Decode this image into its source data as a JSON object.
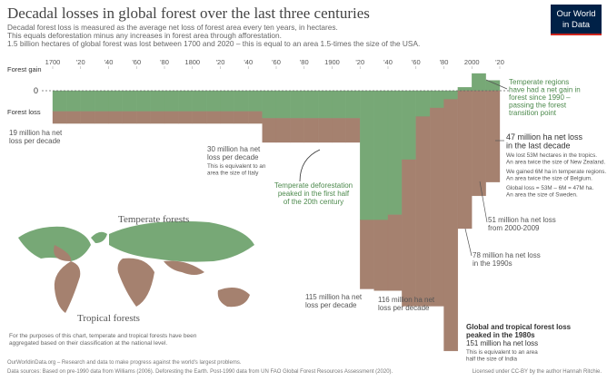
{
  "header": {
    "title": "Decadal losses in global forest over the last three centuries",
    "subtitle": [
      "Decadal forest loss is measured as the average net loss of forest area every ten years, in hectares.",
      "This equals deforestation minus any increases in forest area through afforestation.",
      "1.5 billion hectares of global forest was lost between 1700 and 2020 – this is equal to an area 1.5-times the size of the USA."
    ],
    "logo": [
      "Our World",
      "in Data"
    ]
  },
  "chart_data": {
    "type": "bar",
    "stacked": true,
    "y_labels": {
      "gain": "Forest gain",
      "loss": "Forest loss"
    },
    "x": [
      1700,
      1710,
      1720,
      1730,
      1740,
      1750,
      1760,
      1770,
      1780,
      1790,
      1800,
      1810,
      1820,
      1830,
      1840,
      1850,
      1860,
      1870,
      1880,
      1890,
      1900,
      1910,
      1920,
      1930,
      1940,
      1950,
      1960,
      1970,
      1980,
      1990,
      2000,
      2010
    ],
    "xlim": [
      1700,
      2020
    ],
    "xticks": [
      {
        "value": 1700,
        "label": "1700"
      },
      {
        "value": 1720,
        "label": "'20"
      },
      {
        "value": 1740,
        "label": "'40"
      },
      {
        "value": 1760,
        "label": "'60"
      },
      {
        "value": 1780,
        "label": "'80"
      },
      {
        "value": 1800,
        "label": "1800"
      },
      {
        "value": 1820,
        "label": "'20"
      },
      {
        "value": 1840,
        "label": "'40"
      },
      {
        "value": 1860,
        "label": "'60"
      },
      {
        "value": 1880,
        "label": "'80"
      },
      {
        "value": 1900,
        "label": "1900"
      },
      {
        "value": 1920,
        "label": "'20"
      },
      {
        "value": 1940,
        "label": "'40"
      },
      {
        "value": 1960,
        "label": "'60"
      },
      {
        "value": 1980,
        "label": "'80"
      },
      {
        "value": 2000,
        "label": "2000"
      },
      {
        "value": 2020,
        "label": "'20"
      }
    ],
    "ylim": [
      -155,
      20
    ],
    "yticks": [
      0
    ],
    "grid": false,
    "series": [
      {
        "name": "Temperate forests",
        "color": "#77a876",
        "values": [
          -12,
          -12,
          -12,
          -12,
          -12,
          -12,
          -12,
          -12,
          -12,
          -12,
          -12,
          -12,
          -12,
          -12,
          -12,
          -16,
          -16,
          -16,
          -16,
          -16,
          -16,
          -16,
          -75,
          -75,
          -72,
          -40,
          -15,
          -10,
          -5,
          2,
          10,
          6
        ]
      },
      {
        "name": "Tropical forests",
        "color": "#a5816f",
        "values": [
          -7,
          -7,
          -7,
          -7,
          -7,
          -7,
          -7,
          -7,
          -7,
          -7,
          -7,
          -7,
          -7,
          -7,
          -7,
          -14,
          -14,
          -14,
          -14,
          -14,
          -14,
          -14,
          -40,
          -41,
          -44,
          -85,
          -110,
          -115,
          -146,
          -80,
          -61,
          -53
        ]
      }
    ],
    "annotations": [
      {
        "text": [
          "19 million ha net",
          "loss per decade"
        ]
      },
      {
        "text": [
          "30 million ha net",
          "loss per decade"
        ],
        "detail": [
          "This is equivalent to an",
          "area the size of Italy"
        ]
      },
      {
        "text": [
          "Temperate regions",
          "have had a net gain in",
          "forest since 1990 –",
          "passing the forest",
          "transition point"
        ]
      },
      {
        "text": [
          "47 million ha net loss",
          "in the last decade"
        ],
        "detail": [
          "We lost 53M hectares in the tropics.",
          "An area twice the size of New Zealand.",
          "We gained 6M ha in temperate regions.",
          "An area twice the size of Belgium.",
          "Global loss = 53M – 6M = 47M ha.",
          "An area the size of Sweden."
        ]
      },
      {
        "text": [
          "Temperate deforestation",
          "peaked in the first half",
          "of the 20th century"
        ]
      },
      {
        "text": [
          "51 million ha net loss",
          "from 2000-2009"
        ]
      },
      {
        "text": [
          "78 million ha net loss",
          "in the 1990s"
        ]
      },
      {
        "text": [
          "115 million ha net",
          "loss per decade"
        ]
      },
      {
        "text": [
          "116 million ha net",
          "loss per decade"
        ]
      },
      {
        "text": [
          "Global and tropical forest loss",
          "peaked in the 1980s",
          "151 million ha net loss"
        ],
        "detail": [
          "This is equivalent to an area",
          "half the size of India"
        ]
      }
    ],
    "note": [
      "For the purposes of this chart, temperate and tropical forests have been",
      "aggregated based on their classification at the national level."
    ]
  },
  "footer": {
    "source": [
      "OurWorldinData.org – Research and data to make progress against the world's largest problems.",
      "Data sources: Based on pre-1990 data from Williams (2006). Deforesting the Earth. Post-1990 data from UN FAO Global Forest Resources Assessment (2020)."
    ],
    "license": "Licensed under CC-BY by the author Hannah Ritchie."
  }
}
